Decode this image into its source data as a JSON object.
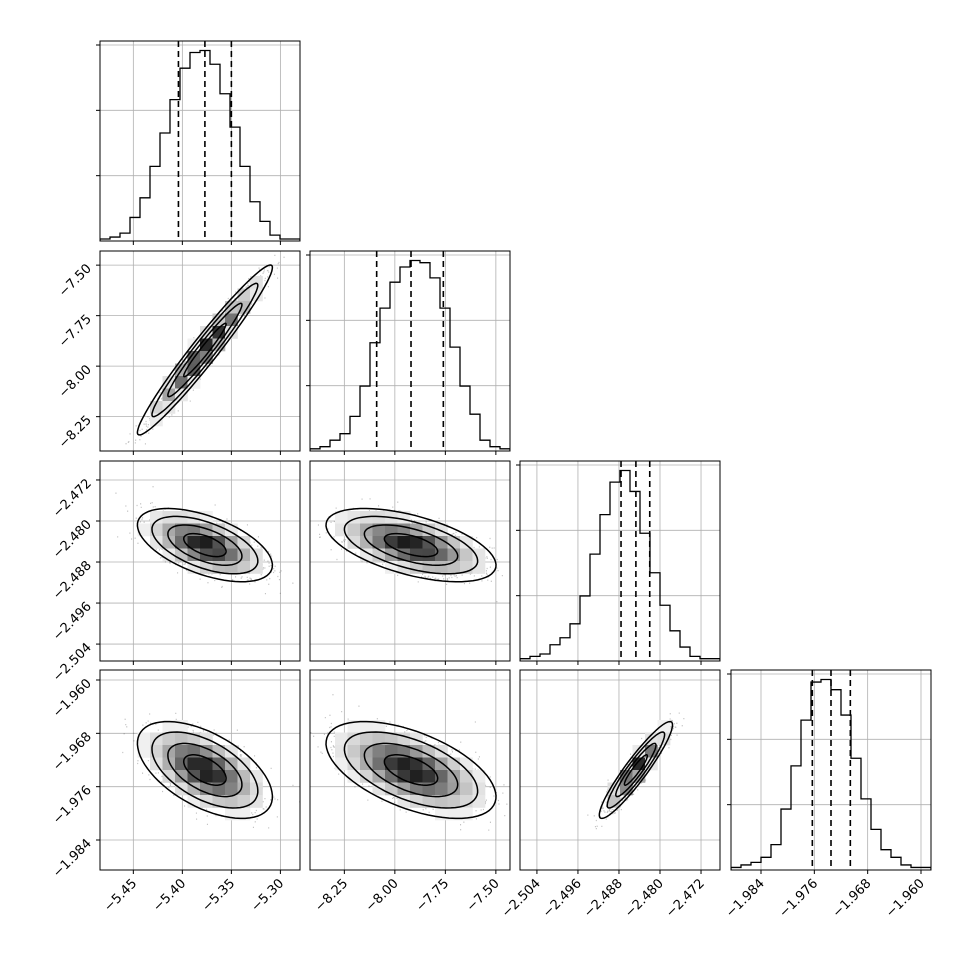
{
  "chart_data": {
    "type": "corner",
    "parameters": [
      {
        "ticks": [
          -5.45,
          -5.4,
          -5.35,
          -5.3
        ],
        "tick_labels": [
          "−5.45",
          "−5.40",
          "−5.35",
          "−5.30"
        ],
        "range": [
          -5.484,
          -5.28
        ]
      },
      {
        "ticks": [
          -8.25,
          -8.0,
          -7.75,
          -7.5
        ],
        "tick_labels": [
          "−8.25",
          "−8.00",
          "−7.75",
          "−7.50"
        ],
        "range": [
          -8.42,
          -7.43
        ]
      },
      {
        "ticks": [
          -2.504,
          -2.496,
          -2.488,
          -2.48,
          -2.472
        ],
        "tick_labels": [
          "−2.504",
          "−2.496",
          "−2.488",
          "−2.480",
          "−2.472"
        ],
        "range": [
          -2.5073,
          -2.4683
        ]
      },
      {
        "ticks": [
          -1.984,
          -1.976,
          -1.968,
          -1.96
        ],
        "tick_labels": [
          "−1.984",
          "−1.976",
          "−1.968",
          "−1.960"
        ],
        "range": [
          -1.9885,
          -1.9585
        ]
      }
    ],
    "quantiles": [
      [
        -5.404,
        -5.377,
        -5.35
      ],
      [
        -8.09,
        -7.92,
        -7.76
      ],
      [
        -2.4876,
        -2.4847,
        -2.482
      ],
      [
        -1.9763,
        -1.9735,
        -1.9706
      ]
    ],
    "histograms": [
      [
        1,
        2,
        4,
        12,
        22,
        38,
        55,
        72,
        88,
        96,
        97,
        90,
        75,
        58,
        38,
        20,
        10,
        3,
        1,
        1
      ],
      [
        1,
        2,
        5,
        8,
        16,
        30,
        50,
        66,
        78,
        85,
        88,
        87,
        80,
        66,
        48,
        30,
        17,
        5,
        2,
        1
      ],
      [
        1,
        2,
        3,
        7,
        10,
        16,
        28,
        46,
        63,
        77,
        82,
        73,
        55,
        38,
        24,
        13,
        6,
        2,
        1,
        1
      ],
      [
        1,
        2,
        3,
        5,
        10,
        24,
        41,
        59,
        74,
        75,
        71,
        61,
        44,
        28,
        16,
        8,
        5,
        2,
        1,
        1
      ]
    ],
    "correlations": {
      "1-0": 0.97,
      "2-0": -0.55,
      "2-1": -0.55,
      "3-0": -0.55,
      "3-1": -0.55,
      "3-2": 0.93
    },
    "grid": true,
    "quantile_line_style": "dashed"
  }
}
